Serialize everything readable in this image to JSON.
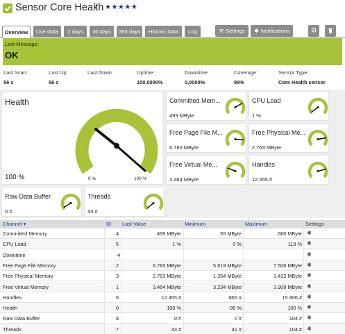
{
  "title": {
    "name": "Sensor Core Health",
    "flag": "⚑",
    "stars": "★★★★★"
  },
  "tabs": [
    {
      "label": "Overview",
      "active": true
    },
    {
      "label": "Live Data"
    },
    {
      "label": "2 days"
    },
    {
      "label": "30 days"
    },
    {
      "label": "365 days"
    },
    {
      "label": "Historic Data"
    },
    {
      "label": "Log"
    }
  ],
  "toolbar": {
    "settings_label": "Settings",
    "settings_icon": "wrench-icon",
    "notifications_label": "Notifications",
    "notifications_icon": "bell-icon",
    "pin_icon": "pin-icon",
    "delete_icon": "trash-icon"
  },
  "status": {
    "last_message_label": "Last Message:",
    "value": "OK",
    "color": "#a8c33a"
  },
  "stats": [
    {
      "label": "Last Scan:",
      "value": "56 s"
    },
    {
      "label": "Last Up:",
      "value": "56 s"
    },
    {
      "label": "Last Down:",
      "value": ""
    },
    {
      "label": "Uptime:",
      "value": "100,0000%"
    },
    {
      "label": "Downtime:",
      "value": "0,0000%"
    },
    {
      "label": "Coverage:",
      "value": "99%"
    },
    {
      "label": "Sensor Type:",
      "value": "Core Health sensor"
    }
  ],
  "health": {
    "label": "Health",
    "value": "100 %",
    "gauge_min": "0 %",
    "gauge_max": "100 %",
    "gauge_level": 1.0
  },
  "small_tiles": [
    {
      "label": "Committed Mem...",
      "value": "499 MByte",
      "level": 0.72
    },
    {
      "label": "CPU Load",
      "value": "1 %",
      "level": 0.03
    },
    {
      "label": "Free Page File M...",
      "value": "6.783 MByte",
      "level": 0.85
    },
    {
      "label": "Free Physical Me...",
      "value": "2.763 MByte",
      "level": 0.8
    },
    {
      "label": "Free Virtual Me...",
      "value": "3.464 MByte",
      "level": 0.25
    },
    {
      "label": "Handles",
      "value": "12.455 #",
      "level": 0.78
    },
    {
      "label": "Raw Data Buffer",
      "value": "0 #",
      "level": 0.05
    },
    {
      "label": "Threads",
      "value": "43 #",
      "level": 0.02
    }
  ],
  "table": {
    "headers": {
      "channel": "Channel",
      "id": "ID",
      "last_value": "Last Value",
      "minimum": "Minimum",
      "maximum": "Maximum",
      "settings": "Settings"
    },
    "rows": [
      {
        "channel": "Committed Memory",
        "id": "4",
        "last": "499 MByte",
        "min": "55 MByte",
        "max": "660 MByte"
      },
      {
        "channel": "CPU Load",
        "id": "5",
        "last": "1 %",
        "min": "0 %",
        "max": "119 %"
      },
      {
        "channel": "Downtime",
        "id": "-4",
        "last": "",
        "min": "",
        "max": ""
      },
      {
        "channel": "Free Page File Memory",
        "id": "2",
        "last": "6.783 MByte",
        "min": "5.619 MByte",
        "max": "7.508 MByte"
      },
      {
        "channel": "Free Physical Memory",
        "id": "3",
        "last": "2.763 MByte",
        "min": "1.354 MByte",
        "max": "3.432 MByte"
      },
      {
        "channel": "Free Virtual Memory",
        "id": "1",
        "last": "3.464 MByte",
        "min": "3.234 MByte",
        "max": "3.908 MByte"
      },
      {
        "channel": "Handles",
        "id": "6",
        "last": "12.455 #",
        "min": "865 #",
        "max": "15.906 #"
      },
      {
        "channel": "Health",
        "id": "0",
        "last": "100 %",
        "min": "-95 %",
        "max": "100 %"
      },
      {
        "channel": "Raw Data Buffer",
        "id": "8",
        "last": "0 #",
        "min": "0 #",
        "max": "104 #"
      },
      {
        "channel": "Threads",
        "id": "7",
        "last": "43 #",
        "min": "41 #",
        "max": "104 #"
      }
    ]
  },
  "colors": {
    "gauge_green": "#a8c33a",
    "tab_gray": "#8c8c8c",
    "header_link": "#1f3c7a"
  }
}
